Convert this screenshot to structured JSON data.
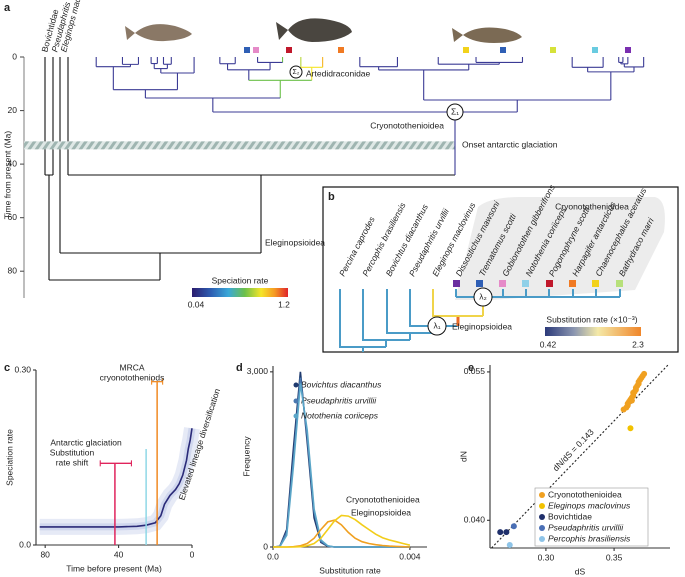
{
  "panel_labels": [
    "a",
    "b",
    "c",
    "d",
    "e"
  ],
  "tree_a": {
    "y_label": "Time from present (Ma)",
    "ylim": [
      0,
      90
    ],
    "yticks": [
      0,
      20,
      40,
      60,
      80
    ],
    "leaf_labels": [
      "Bovichtidae",
      "Pseudaphritis urvillii",
      "Eleginops maclovinus"
    ],
    "clade_labels": [
      "Artedidraconidae",
      "Cryonotothenioidea",
      "Eleginopsioidea"
    ],
    "node_symbols": [
      "Σ₁",
      "Σ₂"
    ],
    "glaciation": {
      "label": "Onset antarctic glaciation",
      "age": 33
    },
    "colorbar": {
      "title": "Speciation rate",
      "min": 0.04,
      "max": 1.2
    }
  },
  "tree_b": {
    "taxa": [
      "Percina caprodes",
      "Percophis brasiliensis",
      "Bovichtus diacanthus",
      "Pseudaphritis urvillii",
      "Eleginops maclovinus",
      "Dissostichus mawsoni",
      "Trematomus scotti",
      "Gobionotothen gibberifrons",
      "Notothenia coriiceps",
      "Pogonophryne scotti",
      "Harpagifer antarcticus",
      "Chaenocephalus aceratus",
      "Bathydraco marri"
    ],
    "clade_labels": [
      "Cryonotothenioidea",
      "Eleginopsioidea"
    ],
    "node_symbols": [
      "λ₁",
      "λ₂"
    ],
    "colorbar": {
      "title": "Substitution rate (×10⁻³)",
      "min": 0.42,
      "max": 2.3
    }
  },
  "chart_data": [
    {
      "type": "line",
      "y_label": "Speciation rate",
      "x_label": "Time before present (Ma)",
      "xlim": [
        85,
        0
      ],
      "xticks": [
        80,
        40,
        0
      ],
      "ylim": [
        0,
        0.3
      ],
      "yticks": [
        {
          "value": 0,
          "label": "0.0"
        },
        {
          "value": 0.3,
          "label": "0.30"
        }
      ],
      "x": [
        83,
        70,
        60,
        50,
        40,
        30,
        25,
        20,
        17,
        15,
        12,
        9,
        7,
        5,
        3,
        2,
        1,
        0
      ],
      "values": [
        0.031,
        0.031,
        0.031,
        0.031,
        0.031,
        0.032,
        0.034,
        0.038,
        0.05,
        0.07,
        0.085,
        0.095,
        0.105,
        0.12,
        0.145,
        0.165,
        0.18,
        0.2
      ],
      "color": "#2a2a78",
      "annotations": [
        {
          "text": [
            "MRCA",
            "cryonototheniods"
          ],
          "x": 19,
          "range": [
            22,
            16
          ],
          "y": 0.28,
          "color": "#f08a24"
        },
        {
          "text": [
            "Antarctic glaciation"
          ],
          "x": 25,
          "color": "#8fd8e6"
        },
        {
          "text": [
            "Substitution",
            "rate shift"
          ],
          "x": 42,
          "range": [
            50,
            33
          ],
          "y": 0.14,
          "color": "#e0245c"
        }
      ],
      "curve_label": "Elevated lineage diversification"
    },
    {
      "type": "line",
      "y_label": "Frequency",
      "x_label": "Substitution rate",
      "xlim": [
        0,
        0.0045
      ],
      "xticks": [
        {
          "value": 0,
          "label": "0.0"
        },
        0.004
      ],
      "ylim": [
        0,
        3100
      ],
      "yticks": [
        0,
        {
          "value": 3000,
          "label": "3,000"
        }
      ],
      "x": [
        0,
        0.0002,
        0.0004,
        0.0006,
        0.0008,
        0.001,
        0.0012,
        0.0014,
        0.0016,
        0.0018,
        0.002,
        0.0022,
        0.0024,
        0.0026,
        0.0028,
        0.003,
        0.0032,
        0.0034,
        0.0036,
        0.0038,
        0.004
      ],
      "series": [
        {
          "name": "Bovichtus diacanthus",
          "color": "#1f3a6e",
          "values": [
            0,
            10,
            300,
            1700,
            3000,
            1800,
            500,
            80,
            10,
            0,
            0,
            0,
            0,
            0,
            0,
            0,
            0,
            0,
            0,
            0,
            0
          ]
        },
        {
          "name": "Pseudaphritis urvillii",
          "color": "#4a78b0",
          "values": [
            0,
            10,
            250,
            1500,
            2900,
            1900,
            600,
            100,
            15,
            0,
            0,
            0,
            0,
            0,
            0,
            0,
            0,
            0,
            0,
            0,
            0
          ]
        },
        {
          "name": "Notothenia coriiceps",
          "color": "#5aa6c8",
          "values": [
            0,
            5,
            200,
            1400,
            2800,
            2000,
            650,
            120,
            20,
            0,
            0,
            0,
            0,
            0,
            0,
            0,
            0,
            0,
            0,
            0,
            0
          ]
        },
        {
          "name": "Cryonotothenioidea",
          "color": "#f0a020",
          "values": [
            0,
            0,
            0,
            5,
            20,
            60,
            150,
            300,
            430,
            460,
            380,
            250,
            150,
            90,
            60,
            40,
            25,
            15,
            10,
            5,
            0
          ]
        },
        {
          "name": "Eleginopsioidea",
          "color": "#f2cd1a",
          "values": [
            0,
            0,
            0,
            0,
            5,
            20,
            60,
            150,
            300,
            450,
            540,
            530,
            470,
            380,
            300,
            220,
            160,
            120,
            90,
            60,
            30
          ]
        }
      ]
    },
    {
      "type": "scatter",
      "x_label": "dS",
      "y_label": "dN",
      "xlim": [
        0.259,
        0.391
      ],
      "xticks": [
        {
          "value": 0.3,
          "label": "0.30"
        },
        0.35
      ],
      "ylim": [
        0.0372,
        0.0557
      ],
      "yticks": [
        {
          "value": 0.04,
          "label": "0.040"
        },
        0.055
      ],
      "reference": {
        "label": "dN/dS = 0.143",
        "slope": 0.143
      },
      "series": [
        {
          "name": "Cryonotothenioidea",
          "color": "#f0a020",
          "x": [
            0.357,
            0.359,
            0.36,
            0.361,
            0.362,
            0.363,
            0.364,
            0.364,
            0.365,
            0.366,
            0.366,
            0.367,
            0.368,
            0.368,
            0.369,
            0.37,
            0.371,
            0.372,
            0.36,
            0.363
          ],
          "values": [
            0.0512,
            0.0514,
            0.0518,
            0.052,
            0.0522,
            0.0524,
            0.0526,
            0.0529,
            0.053,
            0.0532,
            0.0534,
            0.0536,
            0.0538,
            0.054,
            0.0542,
            0.0544,
            0.0546,
            0.0548,
            0.0516,
            0.0521
          ]
        },
        {
          "name": "Eleginops maclovinus",
          "color": "#f2c200",
          "x": [
            0.362
          ],
          "values": [
            0.0493
          ]
        },
        {
          "name": "Bovichtidae",
          "color": "#1f2f6b",
          "x": [
            0.2665,
            0.271
          ],
          "values": [
            0.0388,
            0.0388
          ]
        },
        {
          "name": "Pseudaphritis urvillii",
          "color": "#4a6fb5",
          "x": [
            0.2765
          ],
          "values": [
            0.0394
          ]
        },
        {
          "name": "Percophis brasiliensis",
          "color": "#8ec4e8",
          "x": [
            0.2735
          ],
          "values": [
            0.0375
          ]
        }
      ]
    }
  ]
}
